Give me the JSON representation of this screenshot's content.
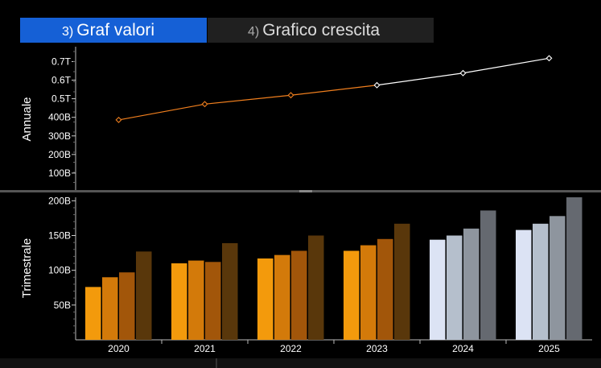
{
  "tabs": [
    {
      "num": "3)",
      "label": "Graf valori",
      "active": true
    },
    {
      "num": "4)",
      "label": "Grafico crescita",
      "active": false
    }
  ],
  "colors": {
    "tab_active": "#1560d6",
    "actual_line": "#f07f1e",
    "estimate_line": "#ffffff",
    "q_actual": [
      "#f39a0c",
      "#d37a0a",
      "#a2560a",
      "#59370b"
    ],
    "q_estimate": [
      "#dce3f4",
      "#b5bfcc",
      "#8e959e",
      "#656970"
    ]
  },
  "chart_data": [
    {
      "type": "line",
      "ylabel": "Annuale",
      "x": [
        "2020",
        "2021",
        "2022",
        "2023",
        "2024",
        "2025"
      ],
      "ylim": [
        0,
        780
      ],
      "yticks": [
        {
          "v": 100,
          "label": "100B"
        },
        {
          "v": 200,
          "label": "200B"
        },
        {
          "v": 300,
          "label": "300B"
        },
        {
          "v": 400,
          "label": "400B"
        },
        {
          "v": 500,
          "label": "0.5T"
        },
        {
          "v": 600,
          "label": "0.6T"
        },
        {
          "v": 700,
          "label": "0.7T"
        }
      ],
      "series": [
        {
          "values": [
            386,
            471,
            519,
            573,
            638,
            718
          ],
          "actual_count": 4
        }
      ]
    },
    {
      "type": "bar",
      "ylabel": "Trimestrale",
      "categories": [
        "2020",
        "2021",
        "2022",
        "2023",
        "2024",
        "2025"
      ],
      "ylim": [
        0,
        205
      ],
      "yticks": [
        {
          "v": 50,
          "label": "50B"
        },
        {
          "v": 100,
          "label": "100B"
        },
        {
          "v": 150,
          "label": "150B"
        },
        {
          "v": 200,
          "label": "200B"
        }
      ],
      "values": [
        [
          76,
          90,
          97,
          127
        ],
        [
          110,
          114,
          112,
          139
        ],
        [
          117,
          122,
          128,
          150
        ],
        [
          128,
          136,
          145,
          167
        ],
        [
          144,
          150,
          160,
          186
        ],
        [
          158,
          167,
          178,
          205
        ]
      ],
      "estimate_from_index": 4
    }
  ]
}
